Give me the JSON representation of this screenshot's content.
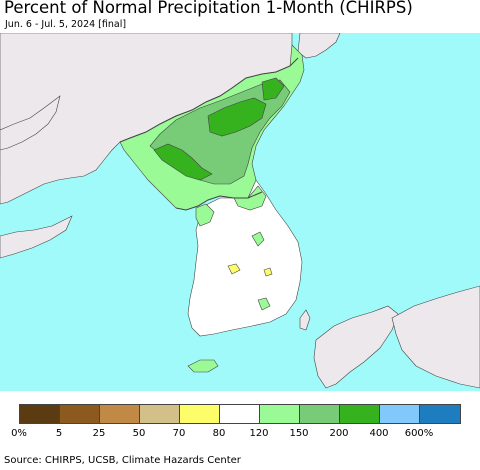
{
  "title": "Percent of Normal Precipitation 1-Month (CHIRPS)",
  "subtitle": "Jun. 6 - Jul. 5, 2024 [final]",
  "legend": {
    "colors": [
      "#5a3b12",
      "#8c5a1e",
      "#c08a46",
      "#d2c088",
      "#fdfd6a",
      "#ffffff",
      "#9afa96",
      "#78cc78",
      "#36b21e",
      "#82c8fa",
      "#1e7dbe"
    ],
    "labels": [
      "0%",
      "5",
      "25",
      "50",
      "70",
      "80",
      "120",
      "150",
      "200",
      "400",
      "600%"
    ]
  },
  "source": "Source: CHIRPS, UCSB, Climate Hazards Center",
  "map_colors": {
    "sea": "#a0fafa",
    "foreign_land": "#ece8ec",
    "land_normal": "#ffffff",
    "wet_150": "#9afa96",
    "wet_200": "#78cc78",
    "wet_400": "#36b21e",
    "dry_70": "#fdfd6a",
    "border": "#444444"
  }
}
